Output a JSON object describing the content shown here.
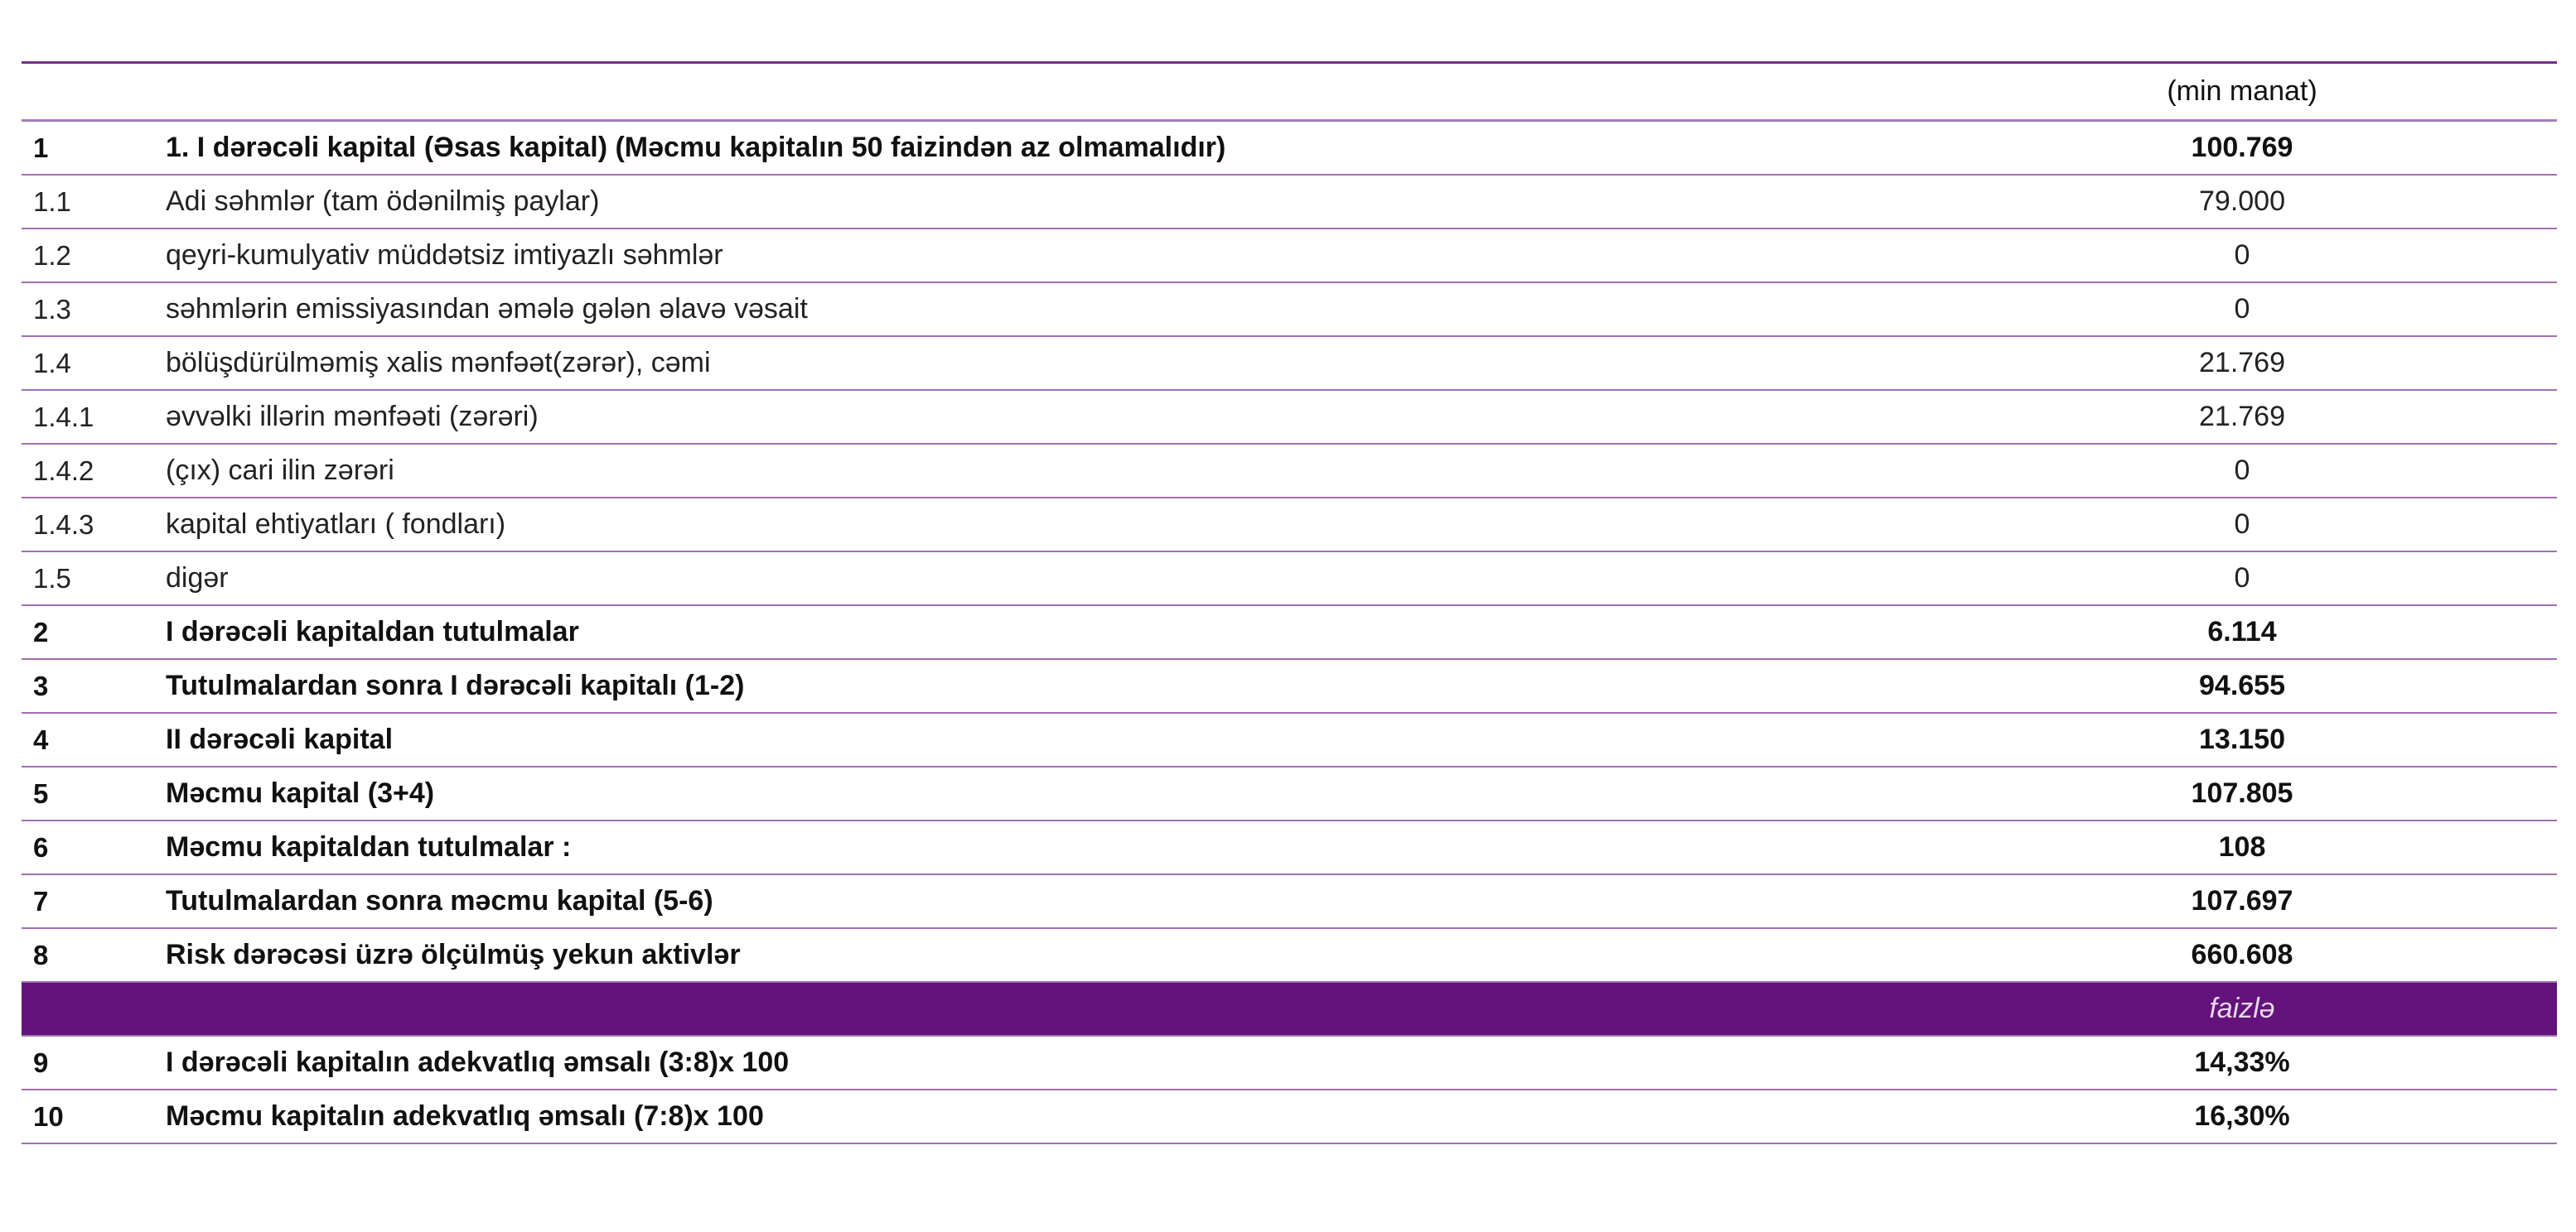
{
  "unit": "(min manat)",
  "rows": [
    {
      "num": "1",
      "label": "1. I dərəcəli kapital (Əsas kapital) (Məcmu kapitalın 50 faizindən az olmamalıdır)",
      "value": "100.769",
      "bold": true
    },
    {
      "num": "1.1",
      "label": "Adi səhmlər (tam ödənilmiş paylar)",
      "value": "79.000",
      "bold": false
    },
    {
      "num": "1.2",
      "label": "qeyri-kumulyativ müddətsiz imtiyazlı səhmlər",
      "value": "0",
      "bold": false
    },
    {
      "num": "1.3",
      "label": "səhmlərin emissiyasından əmələ gələn əlavə vəsait",
      "value": "0",
      "bold": false
    },
    {
      "num": "1.4",
      "label": "bölüşdürülməmiş xalis mənfəət(zərər), cəmi",
      "value": "21.769",
      "bold": false
    },
    {
      "num": "1.4.1",
      "label": "əvvəlki illərin mənfəəti (zərəri)",
      "value": "21.769",
      "bold": false
    },
    {
      "num": "1.4.2",
      "label": " (çıx) cari ilin zərəri",
      "value": "0",
      "bold": false
    },
    {
      "num": "1.4.3",
      "label": "kapital ehtiyatları ( fondları)",
      "value": "0",
      "bold": false
    },
    {
      "num": "1.5",
      "label": "digər",
      "value": "0",
      "bold": false
    },
    {
      "num": "2",
      "label": "I dərəcəli kapitaldan tutulmalar",
      "value": "6.114",
      "bold": true
    },
    {
      "num": "3",
      "label": "Tutulmalardan sonra I dərəcəli kapitalı (1-2)",
      "value": "94.655",
      "bold": true
    },
    {
      "num": "4",
      "label": "II dərəcəli kapital",
      "value": "13.150",
      "bold": true
    },
    {
      "num": "5",
      "label": "Məcmu kapital  (3+4)",
      "value": "107.805",
      "bold": true
    },
    {
      "num": "6",
      "label": "Məcmu kapitaldan tutulmalar :",
      "value": "108",
      "bold": true
    },
    {
      "num": "7",
      "label": "Tutulmalardan sonra məcmu kapital (5-6)",
      "value": "107.697",
      "bold": true
    },
    {
      "num": "8",
      "label": "Risk dərəcəsi üzrə ölçülmüş yekun aktivlər",
      "value": "660.608",
      "bold": true
    }
  ],
  "percent_header": "faizlə",
  "ratio_rows": [
    {
      "num": "9",
      "label": "I dərəcəli kapitalın adekvatlıq əmsalı  (3:8)x 100",
      "value": "14,33%"
    },
    {
      "num": "10",
      "label": "Məcmu kapitalın adekvatlıq əmsalı (7:8)x 100",
      "value": "16,30%"
    }
  ],
  "colors": {
    "accent": "#63137a",
    "divider": "#a26fb3"
  }
}
